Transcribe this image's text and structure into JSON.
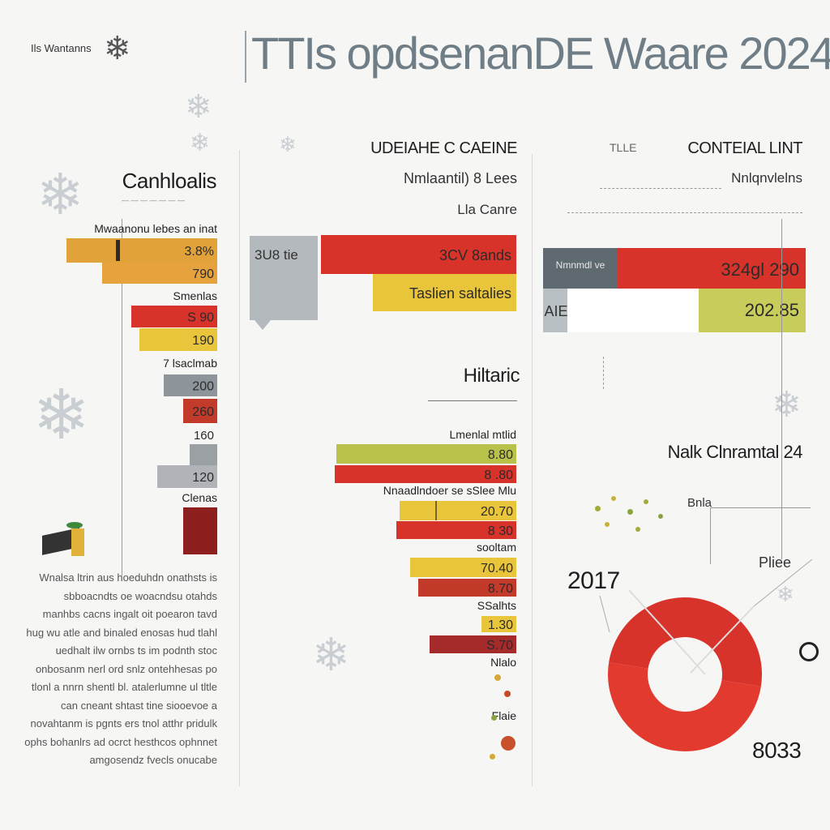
{
  "header": {
    "brand": "Ils Wantanns",
    "title": "TTIs opdsenanDE Waare 2024"
  },
  "left_panel": {
    "heading": "Canhloalis",
    "subheading": "Mwaanonu lebes an inat",
    "body_text": "Wnalsa ltrin aus hoeduhdn onathsts is sbboacndts oe woacndsu otahds manhbs cacns ingalt oit poearon tavd hug wu atle and binaled enosas hud tlahl uedhalt ilw ornbs ts im podnth stoc onbosanm nerl ord snlz ontehhesas po tlonl a nnrn shentl bl. atalerlumne ul tltle can cneant shtast tine siooevoe a novahtanm is pgnts ers tnol atthr pridulk ophs bohanlrs ad ocrct hesthcos ophnnet amgosendz fvecls onucabe"
  },
  "center_panel": {
    "heading_top": "UDEIAHE C CAEINE",
    "sub_top_1": "Nmlaantil) 8 Lees",
    "sub_top_2": "Lla Canre",
    "callout": "3U8 tie",
    "heading_mid": "Hiltaric",
    "sub_mid": "Lmenlal mtlid"
  },
  "right_panel": {
    "heading_top": "CONTEIAL LINT",
    "sub_top": "Nnlqnvlelns",
    "small_label": "TLLE",
    "box_label": "Nmnmdl ve",
    "small_box": "AIE",
    "pie_heading": "Nalk Clnramtal 24",
    "pie_label_left": "2017",
    "pie_label_right": "Pliee",
    "pie_label_top": "Bnla",
    "pie_label_bottom": "8033"
  },
  "chart_data": [
    {
      "type": "bar",
      "orientation": "horizontal",
      "groups": [
        {
          "label": "Mwaanonu lebes an inat",
          "bars": [
            {
              "value": "3.8%",
              "color": "#e2a23a"
            },
            {
              "value": "790",
              "color": "#e6a23c"
            }
          ]
        },
        {
          "label": "Smenlas",
          "bars": [
            {
              "value": "S 90",
              "color": "#d8332b"
            },
            {
              "value": "190",
              "color": "#e9c53c"
            }
          ]
        },
        {
          "label": "7 lsaclmab",
          "bars": [
            {
              "value": "200",
              "color": "#8e959a"
            },
            {
              "value": "260",
              "color": "#c13a2a"
            }
          ]
        },
        {
          "label": "160",
          "bars": [
            {
              "value": "120",
              "color": "#b0b4b8"
            }
          ]
        },
        {
          "label": "Clenas",
          "bars": [
            {
              "value": "",
              "color": "#8e1f1f"
            }
          ]
        }
      ]
    },
    {
      "type": "bar",
      "orientation": "horizontal",
      "groups": [
        {
          "label": "",
          "bars": [
            {
              "value": "3CV 8ands",
              "color": "#d8332b"
            },
            {
              "value": "Taslien saltalies",
              "color": "#e9c53c"
            }
          ]
        }
      ]
    },
    {
      "type": "bar",
      "orientation": "horizontal",
      "title": "Hiltaric",
      "groups": [
        {
          "label": "Lmenlal mtlid",
          "bars": [
            {
              "value": "8.80",
              "color": "#b8c24a"
            },
            {
              "value": "8 .80",
              "color": "#d8332b"
            }
          ]
        },
        {
          "label": "Nnaadlndoer se sSlee Mlu",
          "bars": [
            {
              "value": "20.70",
              "color": "#e9c53c"
            },
            {
              "value": "8 30",
              "color": "#d8332b"
            }
          ]
        },
        {
          "label": "sooltam",
          "bars": [
            {
              "value": "70.40",
              "color": "#e9c53c"
            },
            {
              "value": "8.70",
              "color": "#c13a2a"
            }
          ]
        },
        {
          "label": "SSalhts",
          "bars": [
            {
              "value": "1.30",
              "color": "#e9c53c"
            },
            {
              "value": "S.70",
              "color": "#a52a2a"
            }
          ]
        },
        {
          "label": "Nlalo",
          "bars": []
        },
        {
          "label": "Flaie",
          "bars": []
        }
      ]
    },
    {
      "type": "bar",
      "orientation": "horizontal",
      "title": "CONTEIAL LINT",
      "groups": [
        {
          "label": "Nmnmdl ve",
          "bars": [
            {
              "value": "324gl 290",
              "color": "#d8332b"
            }
          ]
        },
        {
          "label": "AIE",
          "bars": [
            {
              "value": "202.85",
              "color": "#c8cc5a"
            }
          ]
        }
      ]
    },
    {
      "type": "pie",
      "title": "Nalk Clnramtal 24",
      "slices": [
        {
          "label": "2017",
          "color": "#d8332b"
        },
        {
          "label": "8033",
          "color": "#e33a30"
        }
      ]
    }
  ]
}
